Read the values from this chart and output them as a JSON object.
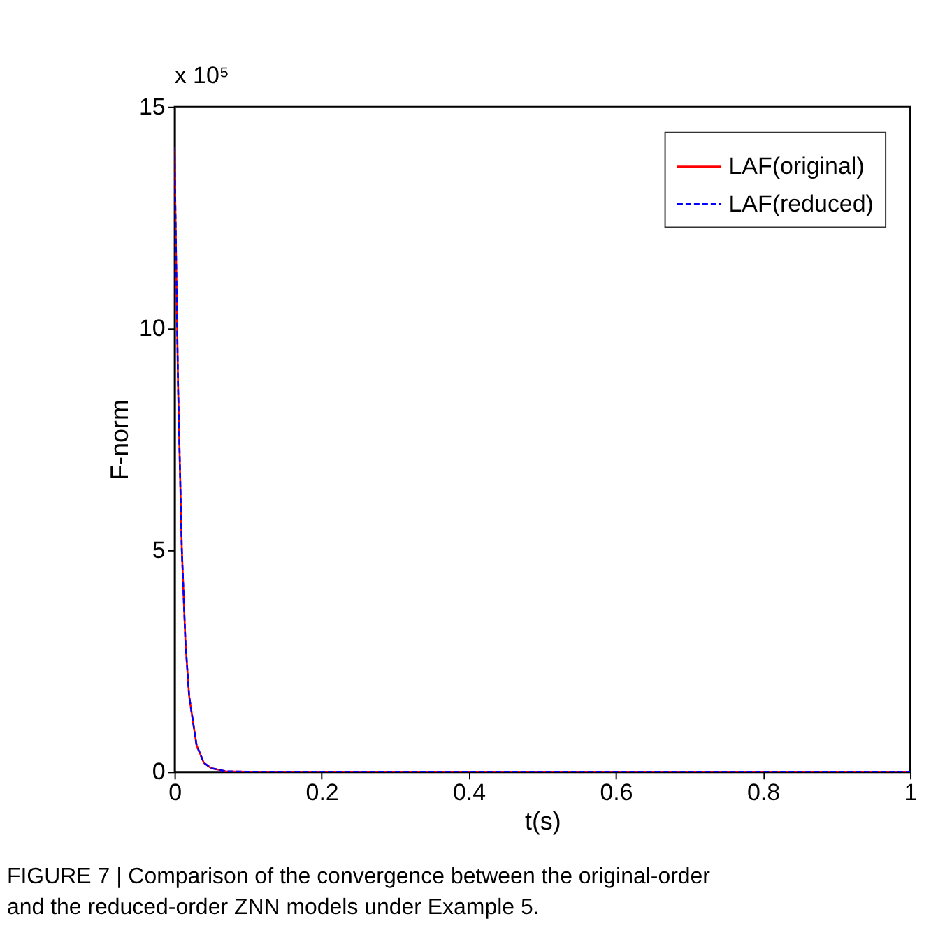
{
  "chart_data": {
    "type": "line",
    "xlabel": "t(s)",
    "ylabel": "F-norm",
    "x": [
      0,
      0.002,
      0.005,
      0.01,
      0.015,
      0.02,
      0.03,
      0.04,
      0.05,
      0.07,
      0.1,
      0.3,
      0.5,
      1
    ],
    "series": [
      {
        "name": "LAF(original)",
        "color": "#ff0000",
        "line_style": "solid",
        "values": [
          14.1,
          11.8,
          8.6,
          5.0,
          2.9,
          1.7,
          0.6,
          0.2,
          0.08,
          0.01,
          0,
          0,
          0,
          0
        ]
      },
      {
        "name": "LAF(reduced)",
        "color": "#0000ff",
        "line_style": "dashed",
        "values": [
          14.1,
          11.8,
          8.6,
          5.0,
          2.9,
          1.7,
          0.6,
          0.2,
          0.08,
          0.01,
          0,
          0,
          0,
          0
        ]
      }
    ],
    "xlim": [
      0,
      1
    ],
    "xticks": [
      0,
      0.2,
      0.4,
      0.6,
      0.8,
      1
    ],
    "ylim": [
      0,
      15
    ],
    "yticks": [
      0,
      5,
      10,
      15
    ],
    "grid": false,
    "legend": "top right",
    "marker": "none",
    "annotations": [
      "x 10⁵",
      "FIGURE 7 | Comparison of the convergence between the original-order",
      "and the reduced-order ZNN models under Example 5."
    ]
  }
}
